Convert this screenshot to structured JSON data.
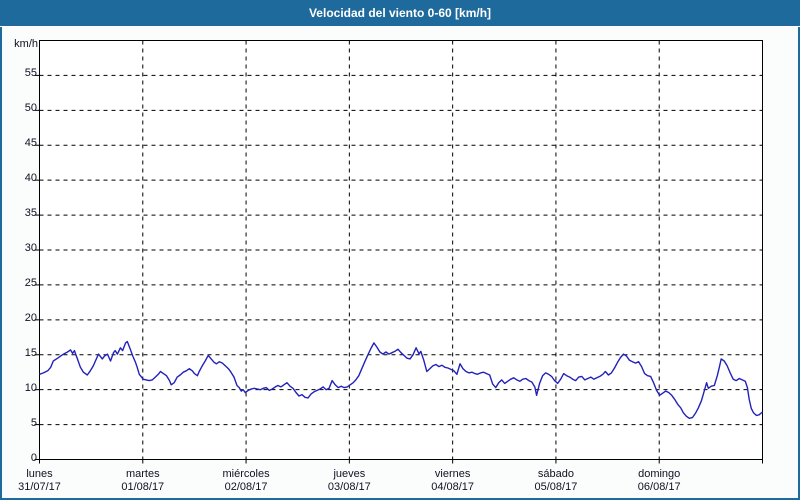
{
  "title": "Velocidad del viento 0-60 [km/h]",
  "colors": {
    "titlebar_bg": "#1e6a9d",
    "titlebar_text": "#ffffff",
    "window_border": "#1e6a9d",
    "window_bg": "#fafdfb",
    "plot_bg": "#ffffff",
    "axis": "#000000",
    "grid": "#000000",
    "label_text": "#101024",
    "line": "#2222bb"
  },
  "chart_data": {
    "type": "line",
    "title": "Velocidad del viento 0-60 [km/h]",
    "ylabel": "km/h",
    "xlabel": "",
    "ylim": [
      0,
      60
    ],
    "ytick_step": 5,
    "ytick_labels": [
      "0",
      "5",
      "10",
      "15",
      "20",
      "25",
      "30",
      "35",
      "40",
      "45",
      "50",
      "55"
    ],
    "x_unit": "hours_from_monday_00",
    "xlim": [
      0,
      168
    ],
    "grid": "dashed",
    "legend": "none",
    "x_days": [
      {
        "name": "lunes",
        "date": "31/07/17"
      },
      {
        "name": "martes",
        "date": "01/08/17"
      },
      {
        "name": "miércoles",
        "date": "02/08/17"
      },
      {
        "name": "jueves",
        "date": "03/08/17"
      },
      {
        "name": "viernes",
        "date": "04/08/17"
      },
      {
        "name": "sábado",
        "date": "05/08/17"
      },
      {
        "name": "domingo",
        "date": "06/08/17"
      }
    ],
    "series": [
      {
        "name": "Velocidad del viento",
        "color": "#2222bb",
        "points": [
          [
            0,
            12.2
          ],
          [
            0.9,
            12.4
          ],
          [
            1.9,
            12.7
          ],
          [
            2.6,
            13.2
          ],
          [
            3.2,
            14.1
          ],
          [
            4.2,
            14.5
          ],
          [
            4.9,
            14.8
          ],
          [
            5.6,
            15.1
          ],
          [
            6.5,
            15.4
          ],
          [
            7.2,
            15.7
          ],
          [
            7.7,
            15.2
          ],
          [
            8.1,
            15.6
          ],
          [
            8.8,
            14.4
          ],
          [
            9.5,
            13.2
          ],
          [
            10.2,
            12.5
          ],
          [
            11.1,
            12.1
          ],
          [
            11.8,
            12.7
          ],
          [
            12.5,
            13.4
          ],
          [
            13,
            14.1
          ],
          [
            13.7,
            15.1
          ],
          [
            14.6,
            14.4
          ],
          [
            15.1,
            14.8
          ],
          [
            15.8,
            15.1
          ],
          [
            16.5,
            14.1
          ],
          [
            17.2,
            15.3
          ],
          [
            17.6,
            15.6
          ],
          [
            18.1,
            15.1
          ],
          [
            18.8,
            16
          ],
          [
            19.3,
            15.6
          ],
          [
            20,
            16.7
          ],
          [
            20.4,
            16.9
          ],
          [
            21.1,
            15.8
          ],
          [
            21.6,
            14.9
          ],
          [
            22.3,
            13.9
          ],
          [
            22.7,
            13.2
          ],
          [
            23.2,
            12.2
          ],
          [
            23.7,
            11.8
          ],
          [
            24.1,
            11.5
          ],
          [
            24.8,
            11.4
          ],
          [
            25.5,
            11.3
          ],
          [
            26.2,
            11.4
          ],
          [
            26.9,
            11.8
          ],
          [
            27.6,
            12.2
          ],
          [
            28.1,
            12.6
          ],
          [
            28.8,
            12.3
          ],
          [
            29.5,
            12
          ],
          [
            30.2,
            11.3
          ],
          [
            30.6,
            10.7
          ],
          [
            31.3,
            11
          ],
          [
            32,
            11.8
          ],
          [
            32.7,
            12.1
          ],
          [
            33.4,
            12.5
          ],
          [
            34.1,
            12.7
          ],
          [
            34.8,
            13
          ],
          [
            35.5,
            12.7
          ],
          [
            36,
            12.3
          ],
          [
            36.7,
            12
          ],
          [
            37.1,
            12.6
          ],
          [
            37.8,
            13.4
          ],
          [
            38.5,
            14.1
          ],
          [
            39.2,
            14.9
          ],
          [
            39.9,
            14.4
          ],
          [
            40.6,
            13.9
          ],
          [
            41.1,
            13.7
          ],
          [
            41.8,
            14
          ],
          [
            42.5,
            13.8
          ],
          [
            43.2,
            13.4
          ],
          [
            43.9,
            13
          ],
          [
            44.5,
            12.5
          ],
          [
            45.2,
            11.8
          ],
          [
            45.9,
            10.6
          ],
          [
            46.4,
            10.3
          ],
          [
            46.9,
            9.8
          ],
          [
            47.3,
            10
          ],
          [
            47.8,
            9.6
          ],
          [
            48.5,
            9.9
          ],
          [
            49.2,
            10.1
          ],
          [
            49.9,
            10.2
          ],
          [
            50.6,
            10.1
          ],
          [
            51.3,
            10
          ],
          [
            52,
            10.2
          ],
          [
            52.7,
            10.3
          ],
          [
            53.4,
            9.9
          ],
          [
            54.1,
            10.1
          ],
          [
            54.8,
            10.4
          ],
          [
            55.4,
            10.6
          ],
          [
            56.1,
            10.4
          ],
          [
            56.8,
            10.7
          ],
          [
            57.5,
            11
          ],
          [
            58.2,
            10.5
          ],
          [
            58.9,
            10.2
          ],
          [
            59.6,
            9.6
          ],
          [
            60.3,
            9.1
          ],
          [
            61,
            9.3
          ],
          [
            61.7,
            8.9
          ],
          [
            62.4,
            8.8
          ],
          [
            63.1,
            9.4
          ],
          [
            63.8,
            9.7
          ],
          [
            64.5,
            9.9
          ],
          [
            65.2,
            10.1
          ],
          [
            65.9,
            10.4
          ],
          [
            66.6,
            10
          ],
          [
            67.3,
            10.2
          ],
          [
            68,
            11.3
          ],
          [
            68.7,
            10.7
          ],
          [
            69.4,
            10.3
          ],
          [
            70.1,
            10.5
          ],
          [
            70.8,
            10.3
          ],
          [
            71.5,
            10.4
          ],
          [
            72.2,
            10.7
          ],
          [
            72.9,
            11
          ],
          [
            73.5,
            11.4
          ],
          [
            74.2,
            12
          ],
          [
            74.9,
            13
          ],
          [
            75.6,
            14
          ],
          [
            76.3,
            15
          ],
          [
            77,
            15.9
          ],
          [
            77.7,
            16.7
          ],
          [
            78.4,
            16.1
          ],
          [
            79.1,
            15.4
          ],
          [
            79.8,
            15.1
          ],
          [
            80.5,
            15.4
          ],
          [
            81.2,
            15.1
          ],
          [
            81.9,
            15.3
          ],
          [
            82.6,
            15.5
          ],
          [
            83.3,
            15.8
          ],
          [
            84,
            15.3
          ],
          [
            84.7,
            14.9
          ],
          [
            85.4,
            14.5
          ],
          [
            86.1,
            14.4
          ],
          [
            86.8,
            15
          ],
          [
            87.5,
            16
          ],
          [
            88.2,
            15.1
          ],
          [
            88.6,
            15.5
          ],
          [
            89.3,
            14.2
          ],
          [
            90,
            12.6
          ],
          [
            90.7,
            13
          ],
          [
            91.4,
            13.4
          ],
          [
            92.1,
            13.6
          ],
          [
            92.8,
            13.3
          ],
          [
            93.5,
            13.5
          ],
          [
            94.2,
            13.2
          ],
          [
            94.9,
            13.1
          ],
          [
            95.6,
            12.9
          ],
          [
            96.3,
            12.7
          ],
          [
            97,
            12.2
          ],
          [
            97.7,
            13.7
          ],
          [
            98.4,
            13
          ],
          [
            99.1,
            12.6
          ],
          [
            99.8,
            12.4
          ],
          [
            100.5,
            12.5
          ],
          [
            101.2,
            12.3
          ],
          [
            101.8,
            12.2
          ],
          [
            102.5,
            12.4
          ],
          [
            103.2,
            12.5
          ],
          [
            103.9,
            12.3
          ],
          [
            104.6,
            12.1
          ],
          [
            105.3,
            10.8
          ],
          [
            106,
            10.3
          ],
          [
            106.7,
            11
          ],
          [
            107.4,
            11.4
          ],
          [
            108.1,
            10.9
          ],
          [
            108.8,
            11.2
          ],
          [
            109.5,
            11.5
          ],
          [
            110.2,
            11.7
          ],
          [
            110.9,
            11.4
          ],
          [
            111.6,
            11.2
          ],
          [
            112.3,
            11.5
          ],
          [
            113,
            11.6
          ],
          [
            113.7,
            11.3
          ],
          [
            114.4,
            11.1
          ],
          [
            115.1,
            10.4
          ],
          [
            115.5,
            9.2
          ],
          [
            116.2,
            10.9
          ],
          [
            116.9,
            12
          ],
          [
            117.6,
            12.4
          ],
          [
            118.3,
            12.2
          ],
          [
            119,
            11.9
          ],
          [
            119.7,
            11.3
          ],
          [
            120.4,
            10.9
          ],
          [
            121.1,
            11.5
          ],
          [
            121.8,
            12.3
          ],
          [
            122.5,
            12
          ],
          [
            123.2,
            11.8
          ],
          [
            123.9,
            11.5
          ],
          [
            124.6,
            11.3
          ],
          [
            125.3,
            11.8
          ],
          [
            126,
            11.9
          ],
          [
            126.7,
            11.4
          ],
          [
            127.4,
            11.6
          ],
          [
            128.1,
            11.8
          ],
          [
            128.8,
            11.5
          ],
          [
            129.5,
            11.7
          ],
          [
            130.2,
            11.9
          ],
          [
            130.9,
            12.2
          ],
          [
            131.5,
            12.6
          ],
          [
            132.2,
            12.1
          ],
          [
            132.9,
            12.4
          ],
          [
            133.6,
            13.1
          ],
          [
            134.3,
            13.9
          ],
          [
            135,
            14.6
          ],
          [
            135.7,
            15.1
          ],
          [
            136.4,
            14.8
          ],
          [
            137.1,
            14.2
          ],
          [
            137.8,
            14
          ],
          [
            138.5,
            13.8
          ],
          [
            139.2,
            14
          ],
          [
            139.9,
            13.3
          ],
          [
            140.6,
            12.3
          ],
          [
            141.3,
            12
          ],
          [
            142,
            11.9
          ],
          [
            142.7,
            11
          ],
          [
            143.4,
            9.9
          ],
          [
            144.1,
            9.2
          ],
          [
            144.8,
            9.5
          ],
          [
            145.5,
            9.8
          ],
          [
            146.2,
            9.6
          ],
          [
            146.9,
            9.2
          ],
          [
            147.6,
            8.6
          ],
          [
            148.3,
            7.9
          ],
          [
            149,
            7.4
          ],
          [
            149.6,
            6.7
          ],
          [
            150.3,
            6.2
          ],
          [
            151,
            5.9
          ],
          [
            151.7,
            6
          ],
          [
            152.4,
            6.6
          ],
          [
            153.1,
            7.4
          ],
          [
            153.8,
            8.4
          ],
          [
            154.5,
            9.9
          ],
          [
            155,
            11
          ],
          [
            155.4,
            10.2
          ],
          [
            156.1,
            10.5
          ],
          [
            156.8,
            10.6
          ],
          [
            157.5,
            12
          ],
          [
            158,
            13.3
          ],
          [
            158.4,
            14.4
          ],
          [
            159.1,
            14.1
          ],
          [
            159.8,
            13.4
          ],
          [
            160.5,
            12.4
          ],
          [
            161.2,
            11.5
          ],
          [
            161.9,
            11.3
          ],
          [
            162.6,
            11.6
          ],
          [
            163.3,
            11.4
          ],
          [
            164,
            11.2
          ],
          [
            164.5,
            10.3
          ],
          [
            164.9,
            8.6
          ],
          [
            165.4,
            7.3
          ],
          [
            165.9,
            6.7
          ],
          [
            166.6,
            6.3
          ],
          [
            167.2,
            6.4
          ],
          [
            168,
            6.8
          ]
        ]
      }
    ]
  }
}
